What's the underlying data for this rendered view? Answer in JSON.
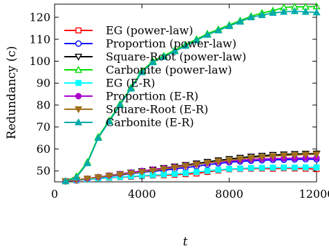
{
  "chart_data": {
    "type": "line",
    "title": "",
    "xlabel": "t",
    "ylabel": "Redundancy (c)",
    "xlim": [
      0,
      12000
    ],
    "ylim": [
      45,
      126
    ],
    "xticks": [
      0,
      4000,
      8000,
      12000
    ],
    "xtick_labels": [
      "0",
      "4000",
      "8000",
      "12000"
    ],
    "yticks": [
      50,
      60,
      70,
      80,
      90,
      100,
      110,
      120
    ],
    "ytick_labels": [
      "50",
      "60",
      "70",
      "80",
      "90",
      "100",
      "110",
      "120"
    ],
    "grid": false,
    "legend_position": "upper-left",
    "x": [
      500,
      1000,
      1500,
      2000,
      2500,
      3000,
      3500,
      4000,
      4500,
      5000,
      5500,
      6000,
      6500,
      7000,
      7500,
      8000,
      8500,
      9000,
      9500,
      10000,
      10500,
      11000,
      11500,
      12000
    ],
    "series": [
      {
        "name": "EG (power-law)",
        "color": "#ff0000",
        "marker": "square-open",
        "values": [
          45.3,
          45.6,
          46.0,
          46.4,
          46.8,
          47.1,
          47.3,
          47.6,
          47.9,
          48.0,
          48.2,
          48.5,
          48.8,
          49.5,
          50.2,
          50.7,
          50.9,
          51.0,
          51.1,
          51.0,
          51.2,
          51.1,
          51.0,
          50.8
        ]
      },
      {
        "name": "Proportion (power-law)",
        "color": "#0000ff",
        "marker": "circle-open",
        "values": [
          45.3,
          45.8,
          46.3,
          46.9,
          47.5,
          48.1,
          48.7,
          49.3,
          49.8,
          50.3,
          50.9,
          51.5,
          52.1,
          52.8,
          53.4,
          53.9,
          54.3,
          54.6,
          54.8,
          55.0,
          55.1,
          55.2,
          55.3,
          55.3
        ]
      },
      {
        "name": "Square-Root (power-law)",
        "color": "#000000",
        "marker": "triangle-down-open",
        "values": [
          45.3,
          45.9,
          46.5,
          47.1,
          47.8,
          48.5,
          49.2,
          49.9,
          50.6,
          51.3,
          52.0,
          52.7,
          53.4,
          54.1,
          54.8,
          55.4,
          56.0,
          56.5,
          56.9,
          57.3,
          57.5,
          57.7,
          57.8,
          57.9
        ]
      },
      {
        "name": "Carbonite (power-law)",
        "color": "#00dd00",
        "marker": "triangle-up-open",
        "values": [
          45.3,
          47.5,
          54.0,
          65.5,
          73.0,
          80.5,
          88.0,
          95.5,
          100.0,
          102.5,
          105.0,
          107.5,
          110.0,
          112.5,
          114.5,
          116.5,
          118.5,
          120.5,
          122.0,
          123.0,
          124.5,
          124.8,
          124.8,
          125.0
        ]
      },
      {
        "name": "EG (E-R)",
        "color": "#00ffff",
        "marker": "square-filled",
        "values": [
          45.3,
          45.7,
          46.1,
          46.5,
          46.9,
          47.2,
          47.5,
          47.8,
          48.1,
          48.3,
          48.6,
          49.0,
          49.5,
          50.0,
          50.5,
          50.9,
          51.1,
          51.3,
          51.4,
          51.5,
          51.5,
          51.5,
          51.6,
          51.6
        ]
      },
      {
        "name": "Proportion (E-R)",
        "color": "#aa00cc",
        "marker": "circle-filled",
        "values": [
          45.3,
          45.9,
          46.5,
          47.2,
          47.9,
          48.6,
          49.3,
          50.0,
          50.6,
          51.2,
          51.8,
          52.4,
          53.0,
          53.6,
          54.1,
          54.5,
          54.9,
          55.2,
          55.4,
          55.6,
          55.7,
          55.8,
          55.9,
          55.9
        ]
      },
      {
        "name": "Square-Root (E-R)",
        "color": "#a0701a",
        "marker": "triangle-down-filled",
        "values": [
          45.3,
          45.9,
          46.5,
          47.1,
          47.7,
          48.3,
          48.9,
          49.5,
          50.1,
          50.8,
          51.5,
          52.2,
          52.9,
          53.6,
          54.3,
          54.9,
          55.4,
          55.9,
          56.3,
          56.7,
          57.0,
          57.2,
          57.4,
          57.5
        ]
      },
      {
        "name": "Carbonite (E-R)",
        "color": "#00aaaa",
        "marker": "triangle-up-filled",
        "values": [
          45.3,
          47.0,
          53.5,
          65.0,
          72.5,
          80.0,
          87.5,
          95.0,
          99.5,
          102.0,
          104.5,
          107.0,
          109.5,
          112.0,
          114.0,
          116.0,
          118.0,
          120.0,
          121.0,
          122.0,
          122.5,
          122.8,
          122.5,
          122.2
        ]
      }
    ]
  }
}
